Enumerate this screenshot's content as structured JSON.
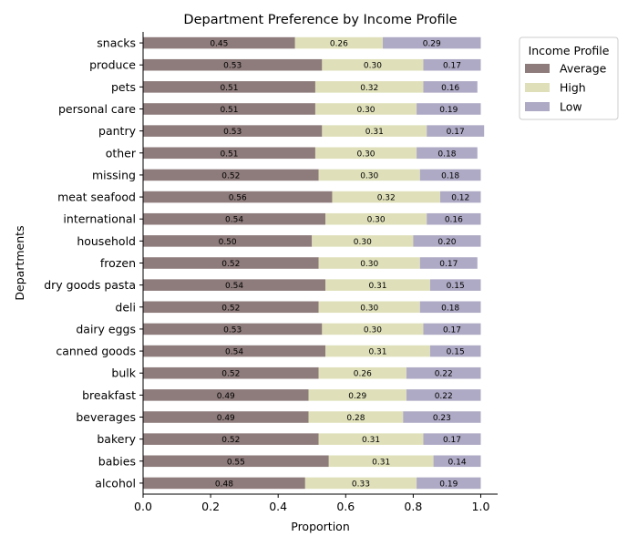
{
  "chart_data": {
    "type": "bar",
    "orientation": "horizontal",
    "stacked": true,
    "title": "Department Preference by Income Profile",
    "xlabel": "Proportion",
    "ylabel": "Departments",
    "xlim": [
      0,
      1.05
    ],
    "xticks": [
      "0.0",
      "0.2",
      "0.4",
      "0.6",
      "0.8",
      "1.0"
    ],
    "legend": {
      "title": "Income Profile",
      "placement": "outside-top-right"
    },
    "categories": [
      "snacks",
      "produce",
      "pets",
      "personal care",
      "pantry",
      "other",
      "missing",
      "meat seafood",
      "international",
      "household",
      "frozen",
      "dry goods pasta",
      "deli",
      "dairy eggs",
      "canned goods",
      "bulk",
      "breakfast",
      "beverages",
      "bakery",
      "babies",
      "alcohol"
    ],
    "series": [
      {
        "name": "Average",
        "color": "#8e7b7b",
        "values": [
          0.45,
          0.53,
          0.51,
          0.51,
          0.53,
          0.51,
          0.52,
          0.56,
          0.54,
          0.5,
          0.52,
          0.54,
          0.52,
          0.53,
          0.54,
          0.52,
          0.49,
          0.49,
          0.52,
          0.55,
          0.48
        ]
      },
      {
        "name": "High",
        "color": "#dfe0ba",
        "values": [
          0.26,
          0.3,
          0.32,
          0.3,
          0.31,
          0.3,
          0.3,
          0.32,
          0.3,
          0.3,
          0.3,
          0.31,
          0.3,
          0.3,
          0.31,
          0.26,
          0.29,
          0.28,
          0.31,
          0.31,
          0.33
        ]
      },
      {
        "name": "Low",
        "color": "#aea9c4",
        "values": [
          0.29,
          0.17,
          0.16,
          0.19,
          0.17,
          0.18,
          0.18,
          0.12,
          0.16,
          0.2,
          0.17,
          0.15,
          0.18,
          0.17,
          0.15,
          0.22,
          0.22,
          0.23,
          0.17,
          0.14,
          0.19
        ]
      }
    ]
  }
}
